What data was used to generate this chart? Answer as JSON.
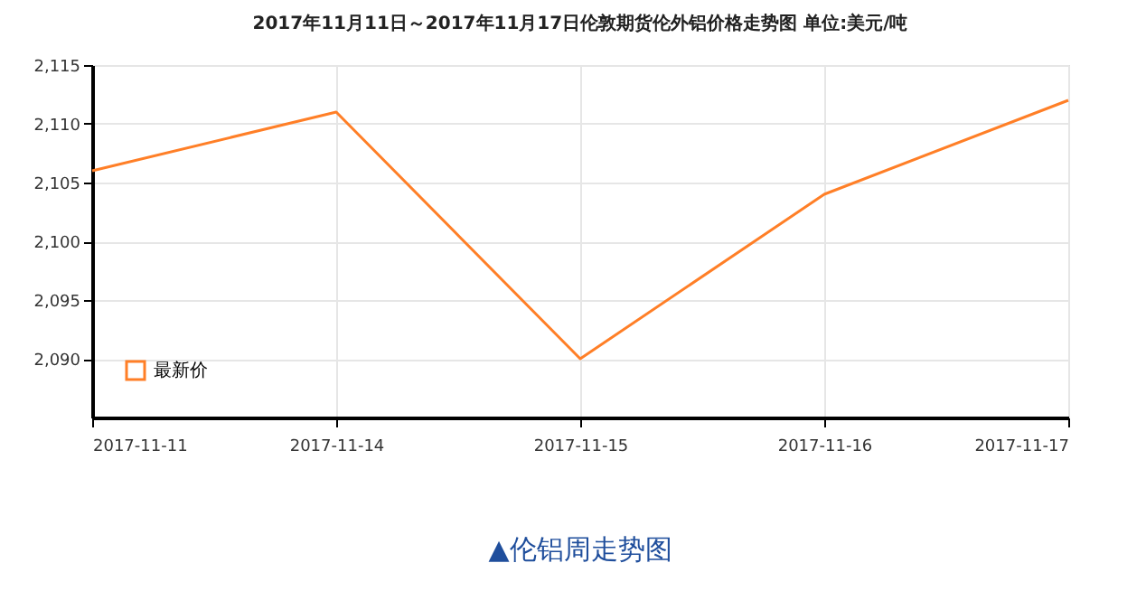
{
  "chart_data": {
    "type": "line",
    "title": "2017年11月11日～2017年11月17日伦敦期货伦外铝价格走势图 单位:美元/吨",
    "categories": [
      "2017-11-11",
      "2017-11-14",
      "2017-11-15",
      "2017-11-16",
      "2017-11-17"
    ],
    "series": [
      {
        "name": "最新价",
        "color": "#ff7f27",
        "values": [
          2106,
          2111,
          2090,
          2104,
          2112
        ]
      }
    ],
    "ylim": [
      2085,
      2115
    ],
    "yticks": [
      {
        "value": 2090,
        "label": "2,090"
      },
      {
        "value": 2095,
        "label": "2,095"
      },
      {
        "value": 2100,
        "label": "2,100"
      },
      {
        "value": 2105,
        "label": "2,105"
      },
      {
        "value": 2110,
        "label": "2,110"
      },
      {
        "value": 2115,
        "label": "2,115"
      }
    ],
    "grid": true,
    "legend": "bottom left",
    "marker": "none",
    "line_style": "solid",
    "annotations": [
      "▲伦铝周走势图"
    ]
  }
}
